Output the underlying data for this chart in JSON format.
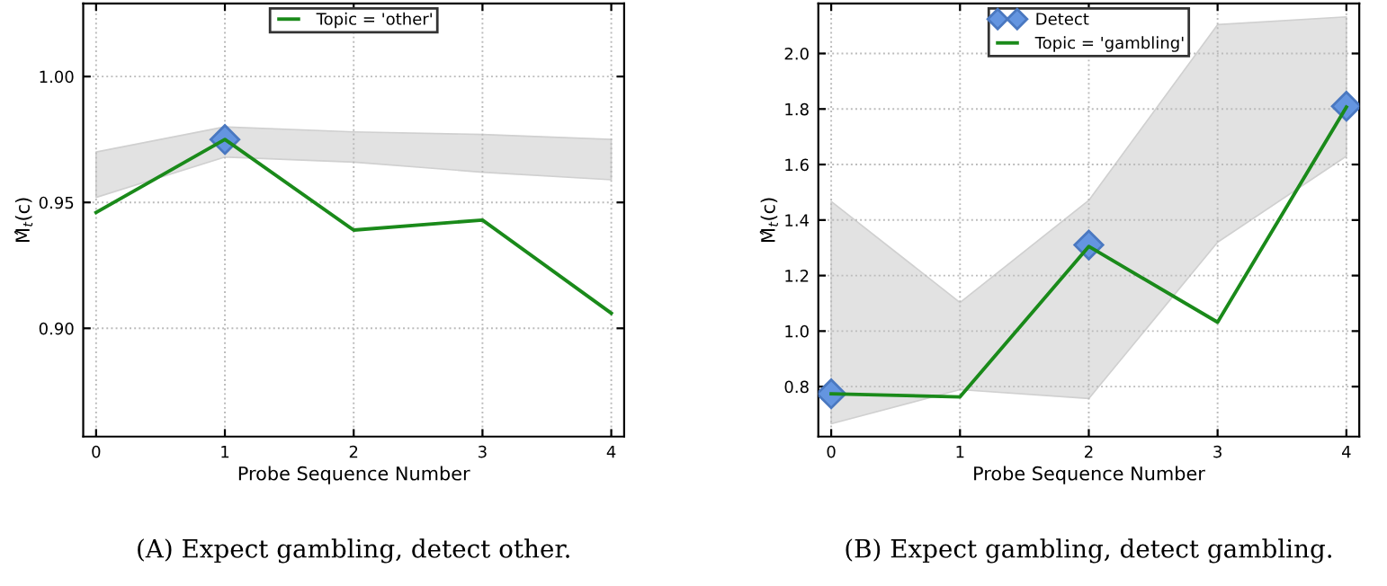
{
  "chart_data": [
    {
      "type": "line",
      "xlabel": "Probe Sequence Number",
      "ylabel": "M̂$_{t}$(c)",
      "x": [
        0,
        1,
        2,
        3,
        4
      ],
      "series": [
        {
          "name": "Topic = 'other'",
          "color": "#1a8a1a",
          "values": [
            0.946,
            0.975,
            0.939,
            0.943,
            0.906
          ],
          "lower": [
            0.952,
            0.968,
            0.966,
            0.962,
            0.959
          ],
          "upper": [
            0.97,
            0.98,
            0.978,
            0.977,
            0.975
          ]
        },
        {
          "type": "scatter",
          "marker": "diamond",
          "color": "#6495e0",
          "x": [
            1
          ],
          "values": [
            0.975
          ]
        }
      ],
      "xlim": [
        -0.1,
        4.1
      ],
      "xticks": [
        0,
        1,
        2,
        3,
        4
      ],
      "ylim": [
        0.857,
        1.029
      ],
      "yticks": [
        {
          "value": 0.9,
          "label": "0.90"
        },
        {
          "value": 0.95,
          "label": "0.95"
        },
        {
          "value": 1.0,
          "label": "1.00"
        }
      ],
      "grid": true,
      "legend": "top",
      "annotations": [
        "(A) Expect gambling, detect other."
      ]
    },
    {
      "type": "line",
      "xlabel": "Probe Sequence Number",
      "ylabel": "M̂$_{t}$(c)",
      "x": [
        0,
        1,
        2,
        3,
        4
      ],
      "series": [
        {
          "type": "scatter",
          "marker": "diamond",
          "name": "Detect",
          "color": "#6495e0",
          "x": [
            0,
            2,
            4
          ],
          "values": [
            0.774,
            1.31,
            1.81
          ]
        },
        {
          "name": "Topic = 'gambling'",
          "color": "#1a8a1a",
          "values": [
            0.774,
            0.763,
            1.305,
            1.032,
            1.807
          ],
          "lower": [
            0.666,
            0.789,
            0.757,
            1.32,
            1.63
          ],
          "upper": [
            1.467,
            1.103,
            1.471,
            2.104,
            2.132
          ]
        }
      ],
      "xlim": [
        -0.1,
        4.1
      ],
      "xticks": [
        0,
        1,
        2,
        3,
        4
      ],
      "ylim": [
        0.62,
        2.18
      ],
      "yticks": [
        {
          "value": 0.8,
          "label": "0.8"
        },
        {
          "value": 1.0,
          "label": "1.0"
        },
        {
          "value": 1.2,
          "label": "1.2"
        },
        {
          "value": 1.4,
          "label": "1.4"
        },
        {
          "value": 1.6,
          "label": "1.6"
        },
        {
          "value": 1.8,
          "label": "1.8"
        },
        {
          "value": 2.0,
          "label": "2.0"
        }
      ],
      "grid": true,
      "legend": "top",
      "annotations": [
        "(B) Expect gambling, detect gambling."
      ]
    }
  ]
}
